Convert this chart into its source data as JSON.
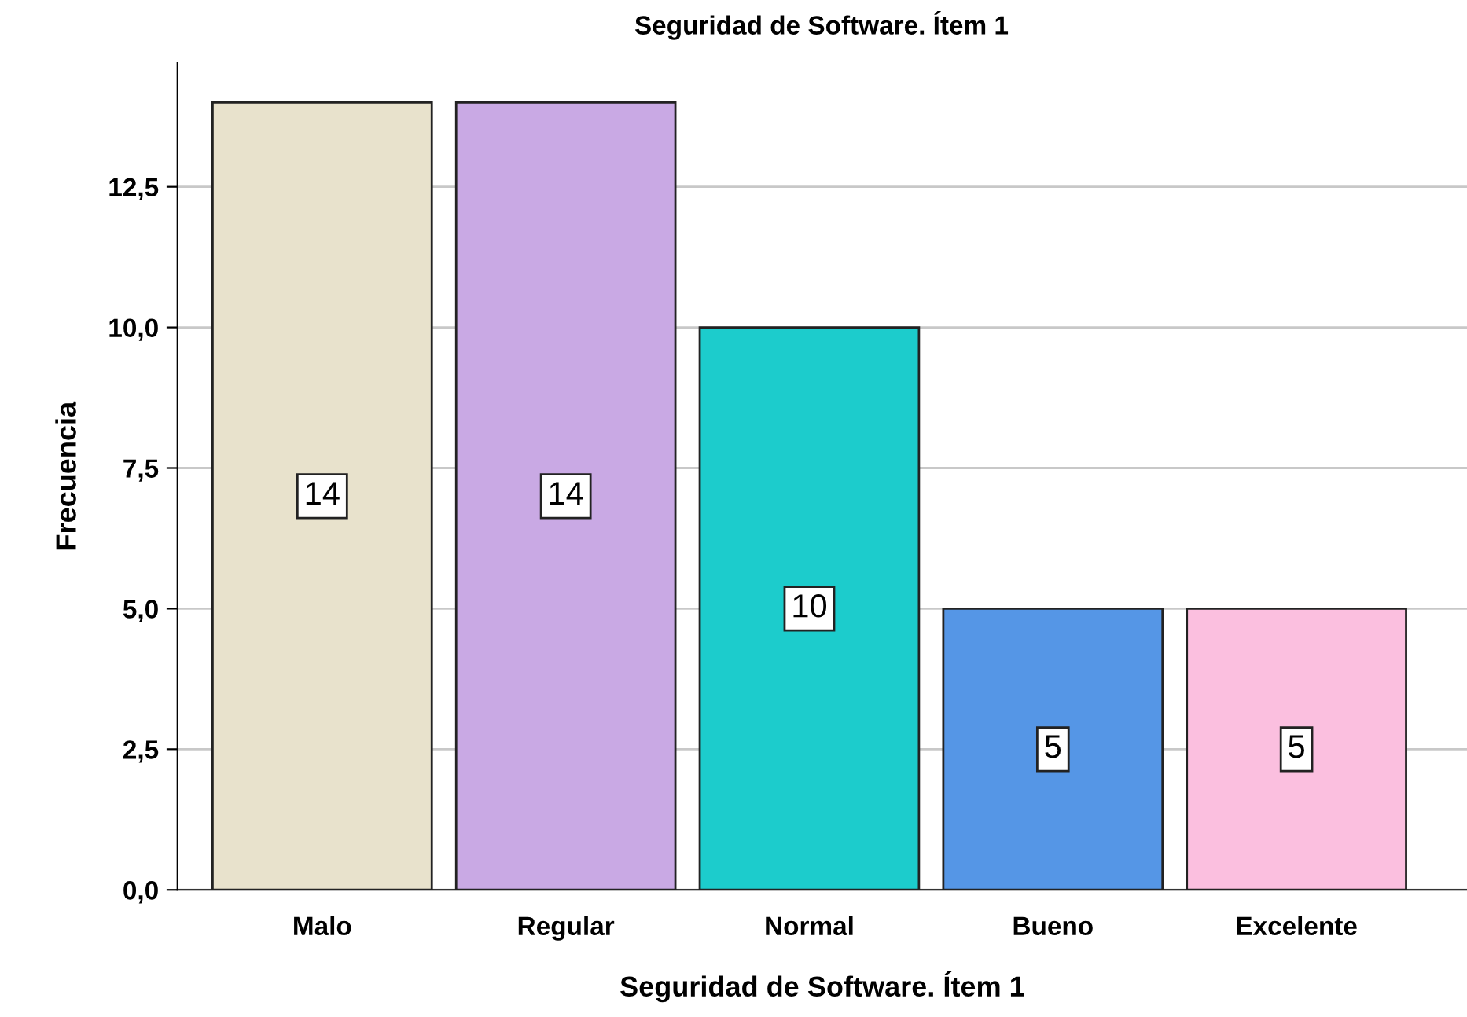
{
  "chart_data": {
    "type": "bar",
    "title": "Seguridad de Software. Ítem 1",
    "xlabel": "Seguridad de Software. Ítem 1",
    "ylabel": "Frecuencia",
    "categories": [
      "Malo",
      "Regular",
      "Normal",
      "Bueno",
      "Excelente"
    ],
    "values": [
      14,
      14,
      10,
      5,
      5
    ],
    "colors": [
      "#e8e2cc",
      "#c9a9e4",
      "#1ccccc",
      "#5596e6",
      "#fbbfdf"
    ],
    "ylim": [
      0,
      14.7
    ],
    "yticks": [
      {
        "value": 0,
        "label": "0,0"
      },
      {
        "value": 2.5,
        "label": "2,5"
      },
      {
        "value": 5,
        "label": "5,0"
      },
      {
        "value": 7.5,
        "label": "7,5"
      },
      {
        "value": 10,
        "label": "10,0"
      },
      {
        "value": 12.5,
        "label": "12,5"
      }
    ],
    "grid": "y",
    "data_labels": true
  }
}
